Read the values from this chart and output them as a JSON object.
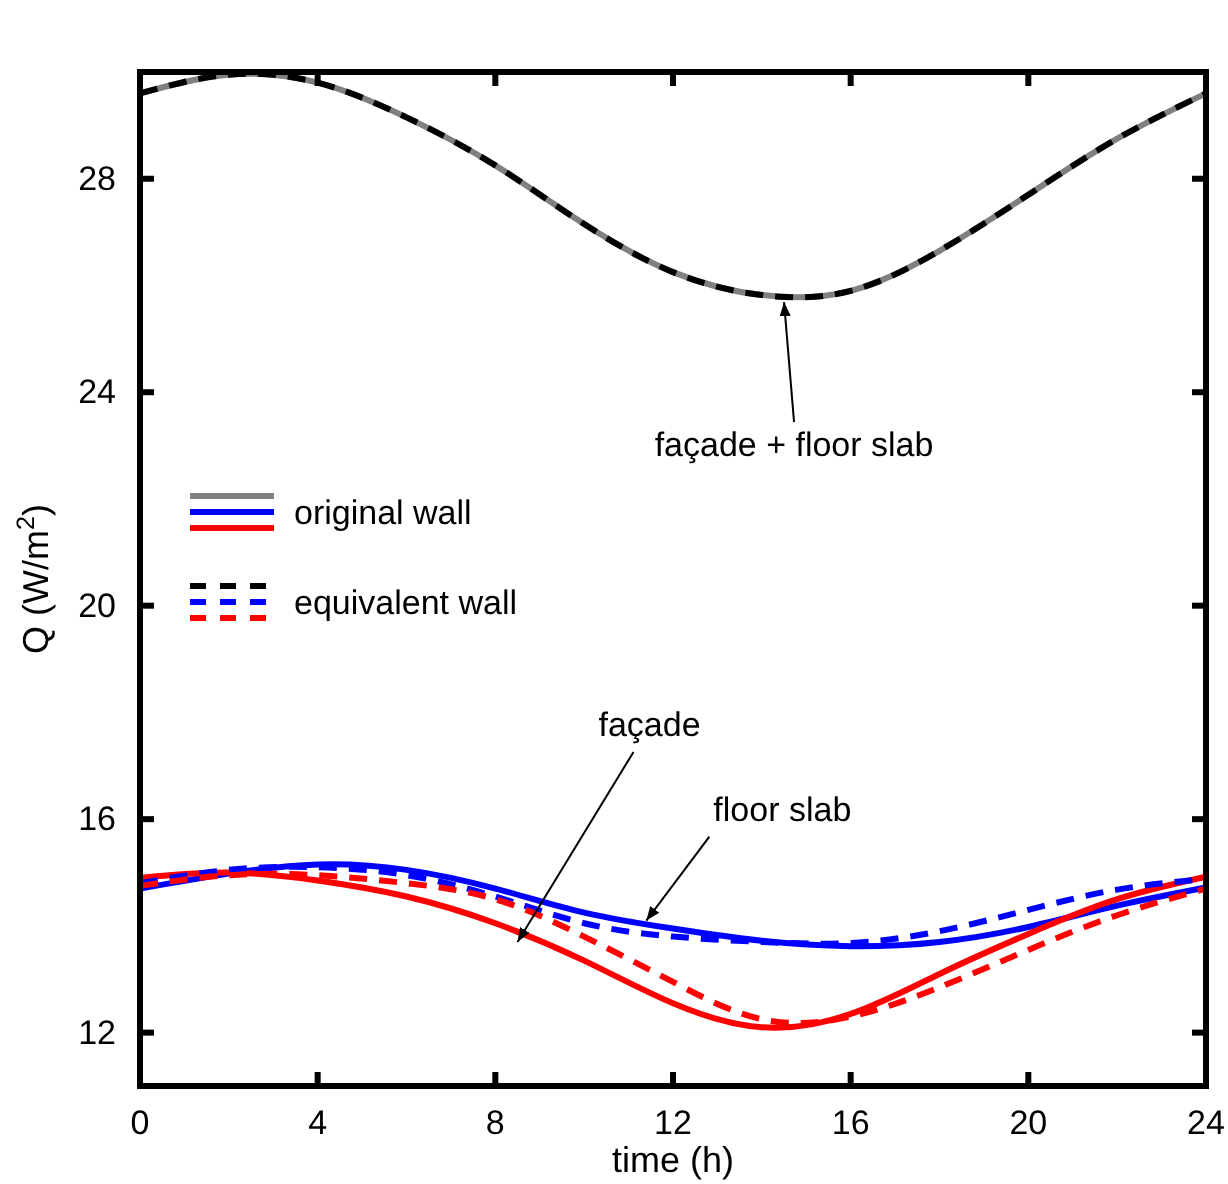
{
  "chart_data": {
    "type": "line",
    "xlabel": "time (h)",
    "ylabel": "Q (W/m$^{2}$)",
    "x": [
      0,
      2,
      4,
      6,
      8,
      10,
      12,
      14,
      16,
      18,
      20,
      22,
      24
    ],
    "xlim": [
      0,
      24
    ],
    "xticks": [
      0,
      4,
      8,
      12,
      16,
      20,
      24
    ],
    "ylim": [
      11,
      30
    ],
    "yticks": [
      12,
      16,
      20,
      24,
      28
    ],
    "grid": false,
    "legend": "left",
    "marker": "none",
    "series": [
      {
        "name": "original wall",
        "color": "#808080",
        "line_style": "solid",
        "values": [
          29.6,
          29.95,
          29.8,
          29.15,
          28.25,
          27.15,
          26.25,
          25.82,
          25.9,
          26.65,
          27.7,
          28.75,
          29.6
        ]
      },
      {
        "color": "#0000ff",
        "line_style": "solid",
        "values": [
          14.7,
          14.98,
          15.15,
          15.05,
          14.7,
          14.25,
          13.95,
          13.72,
          13.62,
          13.7,
          13.98,
          14.38,
          14.72
        ]
      },
      {
        "color": "#ff0000",
        "line_style": "solid",
        "values": [
          14.9,
          15.0,
          14.85,
          14.55,
          14.05,
          13.35,
          12.55,
          12.1,
          12.35,
          13.1,
          13.85,
          14.5,
          14.92
        ]
      },
      {
        "name": "equivalent wall",
        "color": "#000000",
        "line_style": "dashed",
        "values": [
          29.6,
          29.95,
          29.8,
          29.15,
          28.25,
          27.15,
          26.25,
          25.82,
          25.9,
          26.65,
          27.7,
          28.75,
          29.6
        ]
      },
      {
        "color": "#0000ff",
        "line_style": "dashed",
        "values": [
          14.8,
          15.05,
          15.1,
          14.95,
          14.55,
          14.05,
          13.8,
          13.7,
          13.68,
          13.9,
          14.3,
          14.68,
          14.88
        ]
      },
      {
        "color": "#ff0000",
        "line_style": "dashed",
        "values": [
          14.75,
          14.95,
          14.95,
          14.8,
          14.5,
          13.8,
          12.95,
          12.25,
          12.3,
          12.85,
          13.55,
          14.2,
          14.7
        ]
      }
    ],
    "annotations": [
      {
        "text": "façade + floor slab",
        "x": 14.5,
        "y": 25.8
      },
      {
        "text": "façade",
        "x": 8.5,
        "y": 13.7
      },
      {
        "text": "floor slab",
        "x": 11.4,
        "y": 14.1
      }
    ]
  }
}
